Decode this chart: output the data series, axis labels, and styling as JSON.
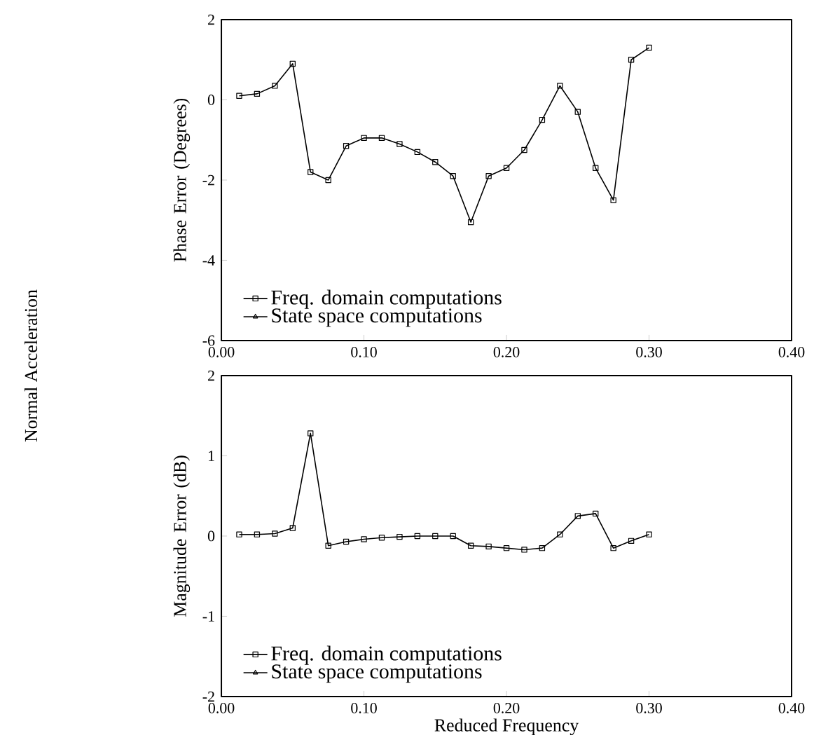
{
  "chart_data": [
    {
      "type": "line",
      "ylabel": "Phase Error (Degrees)",
      "annotations": [
        "Normal Acceleration"
      ],
      "x": [
        0.0125,
        0.025,
        0.0375,
        0.05,
        0.0625,
        0.075,
        0.0875,
        0.1,
        0.1125,
        0.125,
        0.1375,
        0.15,
        0.1625,
        0.175,
        0.1875,
        0.2,
        0.2125,
        0.225,
        0.2375,
        0.25,
        0.2625,
        0.275,
        0.2875,
        0.3
      ],
      "series": [
        {
          "name": "Freq. domain computations",
          "color": "#000000",
          "marker": "square",
          "values": [
            0.1,
            0.15,
            0.35,
            0.9,
            -1.8,
            -2.0,
            -1.15,
            -0.95,
            -0.95,
            -1.1,
            -1.3,
            -1.55,
            -1.9,
            -3.05,
            -1.9,
            -1.7,
            -1.25,
            -0.5,
            0.35,
            -0.3,
            -1.7,
            -2.5,
            1.0,
            1.3
          ]
        },
        {
          "name": "State space computations",
          "color": "#000000",
          "marker": "triangle",
          "values": [
            null,
            null,
            null,
            null,
            null,
            null,
            null,
            null,
            null,
            null,
            null,
            null,
            null,
            null,
            null,
            null,
            null,
            null,
            null,
            null,
            null,
            null,
            null,
            null
          ]
        }
      ],
      "xlim": [
        0,
        0.4
      ],
      "ylim": [
        -6,
        2
      ],
      "xticks": [
        {
          "value": 0,
          "label": "0.00"
        },
        {
          "value": 0.1,
          "label": "0.10"
        },
        {
          "value": 0.2,
          "label": "0.20"
        },
        {
          "value": 0.3,
          "label": "0.30"
        },
        {
          "value": 0.4,
          "label": "0.40"
        }
      ],
      "yticks": [
        -6,
        -4,
        -2,
        0,
        2
      ],
      "legend": "bottom left",
      "line_style": "solid"
    },
    {
      "type": "line",
      "ylabel": "Magnitude Error (dB)",
      "xlabel": "Reduced Frequency",
      "x": [
        0.0125,
        0.025,
        0.0375,
        0.05,
        0.0625,
        0.075,
        0.0875,
        0.1,
        0.1125,
        0.125,
        0.1375,
        0.15,
        0.1625,
        0.175,
        0.1875,
        0.2,
        0.2125,
        0.225,
        0.2375,
        0.25,
        0.2625,
        0.275,
        0.2875,
        0.3
      ],
      "series": [
        {
          "name": "Freq. domain computations",
          "color": "#000000",
          "marker": "square",
          "values": [
            0.02,
            0.02,
            0.03,
            0.1,
            1.28,
            -0.12,
            -0.07,
            -0.04,
            -0.02,
            -0.01,
            0.0,
            0.0,
            0.0,
            -0.12,
            -0.13,
            -0.15,
            -0.17,
            -0.15,
            0.02,
            0.25,
            0.28,
            -0.15,
            -0.06,
            0.02
          ]
        },
        {
          "name": "State space computations",
          "color": "#000000",
          "marker": "triangle",
          "values": [
            null,
            null,
            null,
            null,
            null,
            null,
            null,
            null,
            null,
            null,
            null,
            null,
            null,
            null,
            null,
            null,
            null,
            null,
            null,
            null,
            null,
            null,
            null,
            null
          ]
        }
      ],
      "xlim": [
        0,
        0.4
      ],
      "ylim": [
        -2,
        2
      ],
      "xticks": [
        {
          "value": 0,
          "label": "0.00"
        },
        {
          "value": 0.1,
          "label": "0.10"
        },
        {
          "value": 0.2,
          "label": "0.20"
        },
        {
          "value": 0.3,
          "label": "0.30"
        },
        {
          "value": 0.4,
          "label": "0.40"
        }
      ],
      "yticks": [
        -2,
        -1,
        0,
        1,
        2
      ],
      "legend": "bottom left",
      "line_style": "solid"
    }
  ]
}
